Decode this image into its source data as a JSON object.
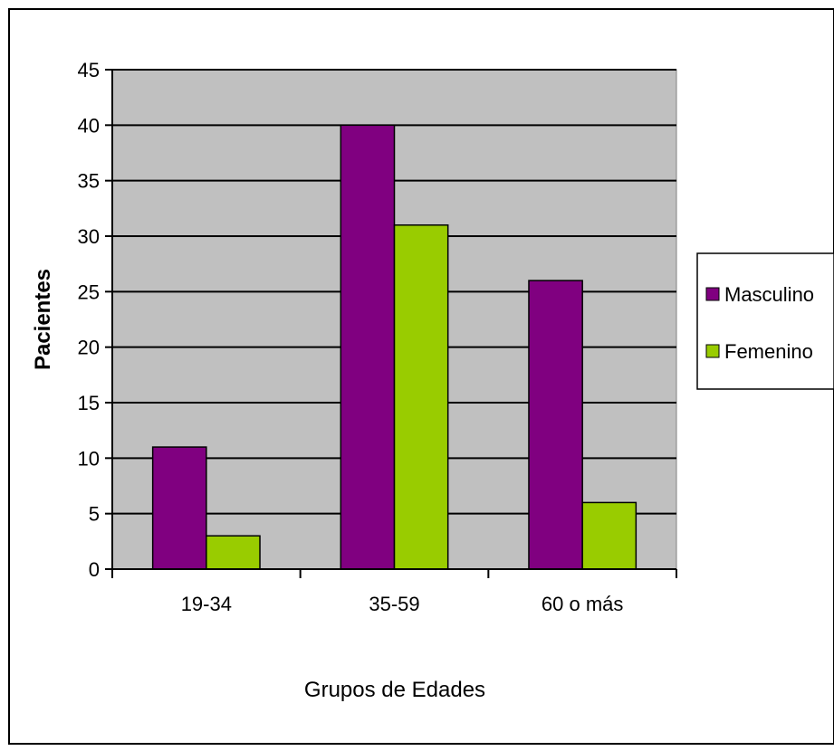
{
  "chart_data": {
    "type": "bar",
    "title": "",
    "xlabel": "Grupos de Edades",
    "ylabel": "Pacientes",
    "categories": [
      "19-34",
      "35-59",
      "60 o más"
    ],
    "series": [
      {
        "name": "Masculino",
        "values": [
          11,
          40,
          26
        ],
        "color": "#800080"
      },
      {
        "name": "Femenino",
        "values": [
          3,
          31,
          6
        ],
        "color": "#99cc00"
      }
    ],
    "ylim": [
      0,
      45
    ],
    "yticks": [
      "0",
      "5",
      "10",
      "15",
      "20",
      "25",
      "30",
      "35",
      "40",
      "45"
    ],
    "grid": true,
    "legend": "right",
    "plot_background": "#c0c0c0"
  }
}
